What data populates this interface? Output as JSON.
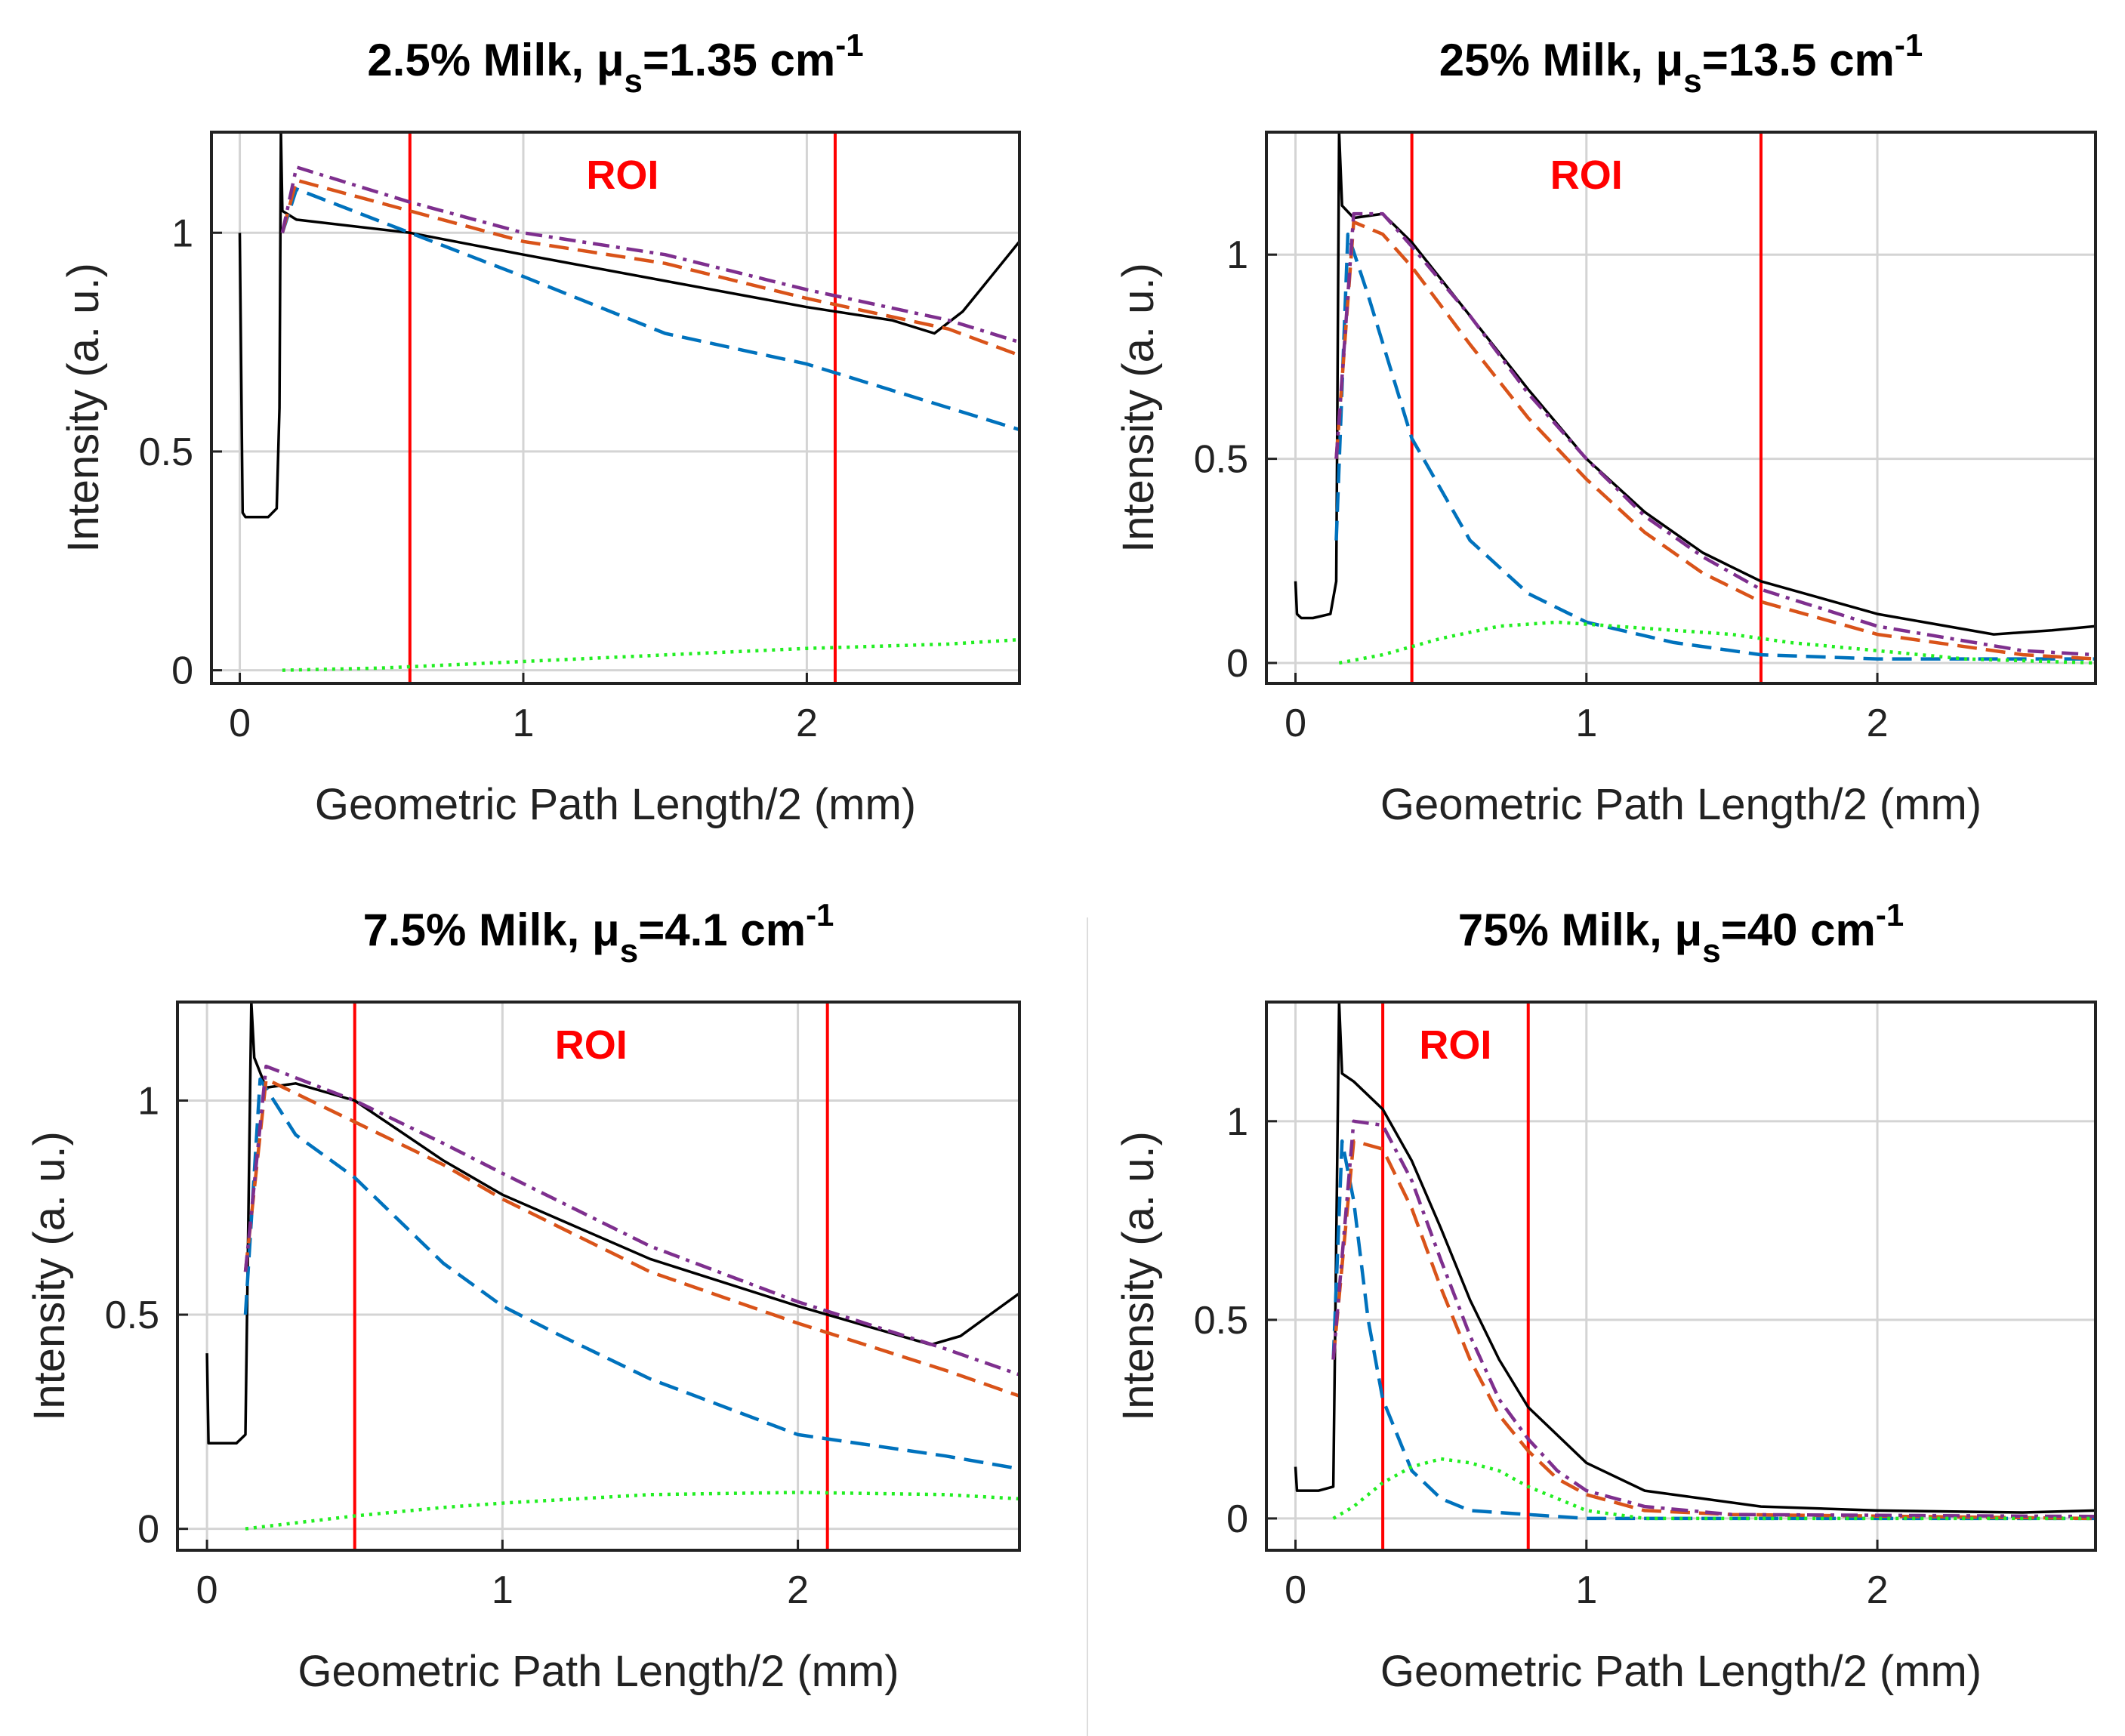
{
  "chart_data": [
    {
      "type": "line",
      "title_main": "2.5% Milk, μ",
      "title_sub": "s",
      "title_value": "=1.35 cm",
      "title_sup": "-1",
      "roi_label": "ROI",
      "roi": [
        0.6,
        2.1
      ],
      "xlabel": "Geometric Path Length/2 (mm)",
      "ylabel": "Intensity (a. u.)",
      "xlim": [
        -0.1,
        2.75
      ],
      "ylim": [
        -0.03,
        1.23
      ],
      "xticks": [
        0,
        1,
        2
      ],
      "xtick_labels": [
        "0",
        "1",
        "2"
      ],
      "yticks": [
        0,
        0.5,
        1
      ],
      "ytick_labels": [
        "0",
        "0.5",
        "1"
      ],
      "series": [
        {
          "name": "reference",
          "color": "#000000",
          "style": "solid",
          "x": [
            0,
            0.01,
            0.02,
            0.05,
            0.1,
            0.13,
            0.14,
            0.145,
            0.15,
            0.2,
            0.6,
            1.0,
            1.5,
            2.0,
            2.3,
            2.45,
            2.55,
            2.65,
            2.75
          ],
          "y": [
            1.0,
            0.36,
            0.35,
            0.35,
            0.35,
            0.37,
            0.6,
            1.23,
            1.05,
            1.03,
            1.0,
            0.95,
            0.89,
            0.83,
            0.8,
            0.77,
            0.82,
            0.9,
            0.98
          ]
        },
        {
          "name": "blue",
          "color": "#0072bd",
          "style": "dashed",
          "x": [
            0.15,
            0.2,
            0.4,
            0.6,
            1.0,
            1.5,
            2.0,
            2.5,
            2.75
          ],
          "y": [
            1.0,
            1.1,
            1.05,
            1.0,
            0.9,
            0.77,
            0.7,
            0.6,
            0.55
          ]
        },
        {
          "name": "orange",
          "color": "#d95319",
          "style": "dashed",
          "x": [
            0.15,
            0.2,
            0.6,
            1.0,
            1.5,
            2.0,
            2.5,
            2.75
          ],
          "y": [
            1.0,
            1.12,
            1.05,
            0.98,
            0.93,
            0.85,
            0.78,
            0.72
          ]
        },
        {
          "name": "purple",
          "color": "#7e2f8e",
          "style": "dashdot",
          "x": [
            0.15,
            0.2,
            0.6,
            1.0,
            1.5,
            2.0,
            2.5,
            2.75
          ],
          "y": [
            1.0,
            1.15,
            1.07,
            1.0,
            0.95,
            0.87,
            0.8,
            0.75
          ]
        },
        {
          "name": "green",
          "color": "#22ee22",
          "style": "dotted",
          "x": [
            0.15,
            0.5,
            1.0,
            1.5,
            2.0,
            2.5,
            2.75
          ],
          "y": [
            0.0,
            0.005,
            0.02,
            0.035,
            0.05,
            0.06,
            0.07
          ]
        }
      ]
    },
    {
      "type": "line",
      "title_main": "25% Milk, μ",
      "title_sub": "s",
      "title_value": "=13.5 cm",
      "title_sup": "-1",
      "roi_label": "ROI",
      "roi": [
        0.4,
        1.6
      ],
      "xlabel": "Geometric Path Length/2 (mm)",
      "ylabel": "Intensity (a. u.)",
      "xlim": [
        -0.1,
        2.75
      ],
      "ylim": [
        -0.05,
        1.3
      ],
      "xticks": [
        0,
        1,
        2
      ],
      "xtick_labels": [
        "0",
        "1",
        "2"
      ],
      "yticks": [
        0,
        0.5,
        1
      ],
      "ytick_labels": [
        "0",
        "0.5",
        "1"
      ],
      "series": [
        {
          "name": "reference",
          "color": "#000000",
          "style": "solid",
          "x": [
            0,
            0.005,
            0.02,
            0.06,
            0.12,
            0.14,
            0.15,
            0.16,
            0.2,
            0.3,
            0.4,
            0.6,
            0.8,
            1.0,
            1.2,
            1.4,
            1.6,
            2.0,
            2.4,
            2.6,
            2.75
          ],
          "y": [
            0.2,
            0.12,
            0.11,
            0.11,
            0.12,
            0.2,
            1.3,
            1.12,
            1.09,
            1.1,
            1.03,
            0.85,
            0.67,
            0.5,
            0.37,
            0.27,
            0.2,
            0.12,
            0.07,
            0.08,
            0.09
          ]
        },
        {
          "name": "blue",
          "color": "#0072bd",
          "style": "dashed",
          "x": [
            0.14,
            0.18,
            0.25,
            0.4,
            0.6,
            0.8,
            1.0,
            1.3,
            1.6,
            2.0,
            2.75
          ],
          "y": [
            0.3,
            1.05,
            0.9,
            0.55,
            0.3,
            0.17,
            0.1,
            0.05,
            0.02,
            0.01,
            0.01
          ]
        },
        {
          "name": "orange",
          "color": "#d95319",
          "style": "dashed",
          "x": [
            0.14,
            0.2,
            0.3,
            0.4,
            0.6,
            0.8,
            1.0,
            1.2,
            1.4,
            1.6,
            2.0,
            2.5,
            2.75
          ],
          "y": [
            0.5,
            1.08,
            1.05,
            0.97,
            0.78,
            0.6,
            0.45,
            0.32,
            0.22,
            0.15,
            0.07,
            0.02,
            0.01
          ]
        },
        {
          "name": "purple",
          "color": "#7e2f8e",
          "style": "dashdot",
          "x": [
            0.14,
            0.2,
            0.3,
            0.4,
            0.6,
            0.8,
            1.0,
            1.2,
            1.4,
            1.6,
            2.0,
            2.5,
            2.75
          ],
          "y": [
            0.5,
            1.1,
            1.1,
            1.02,
            0.85,
            0.66,
            0.5,
            0.36,
            0.26,
            0.18,
            0.09,
            0.03,
            0.02
          ]
        },
        {
          "name": "green",
          "color": "#22ee22",
          "style": "dotted",
          "x": [
            0.15,
            0.3,
            0.5,
            0.7,
            0.9,
            1.1,
            1.3,
            1.5,
            1.7,
            2.0,
            2.3,
            2.75
          ],
          "y": [
            0.0,
            0.02,
            0.06,
            0.09,
            0.1,
            0.09,
            0.08,
            0.07,
            0.05,
            0.03,
            0.01,
            0.0
          ]
        }
      ]
    },
    {
      "type": "line",
      "title_main": "7.5% Milk, μ",
      "title_sub": "s",
      "title_value": "=4.1 cm",
      "title_sup": "-1",
      "roi_label": "ROI",
      "roi": [
        0.5,
        2.1
      ],
      "xlabel": "Geometric Path Length/2 (mm)",
      "ylabel": "Intensity (a. u.)",
      "xlim": [
        -0.1,
        2.75
      ],
      "ylim": [
        -0.05,
        1.23
      ],
      "xticks": [
        0,
        1,
        2
      ],
      "xtick_labels": [
        "0",
        "1",
        "2"
      ],
      "yticks": [
        0,
        0.5,
        1
      ],
      "ytick_labels": [
        "0",
        "0.5",
        "1"
      ],
      "series": [
        {
          "name": "reference",
          "color": "#000000",
          "style": "solid",
          "x": [
            0,
            0.005,
            0.02,
            0.06,
            0.1,
            0.13,
            0.15,
            0.16,
            0.2,
            0.3,
            0.5,
            0.8,
            1.0,
            1.5,
            2.0,
            2.3,
            2.45,
            2.55,
            2.65,
            2.75
          ],
          "y": [
            0.41,
            0.2,
            0.2,
            0.2,
            0.2,
            0.22,
            1.23,
            1.1,
            1.03,
            1.04,
            1.0,
            0.86,
            0.78,
            0.63,
            0.52,
            0.46,
            0.43,
            0.45,
            0.5,
            0.55
          ]
        },
        {
          "name": "blue",
          "color": "#0072bd",
          "style": "dashed",
          "x": [
            0.13,
            0.18,
            0.3,
            0.5,
            0.8,
            1.0,
            1.2,
            1.5,
            2.0,
            2.5,
            2.75
          ],
          "y": [
            0.5,
            1.05,
            0.92,
            0.82,
            0.62,
            0.52,
            0.45,
            0.35,
            0.22,
            0.17,
            0.14
          ]
        },
        {
          "name": "orange",
          "color": "#d95319",
          "style": "dashed",
          "x": [
            0.13,
            0.2,
            0.5,
            0.8,
            1.0,
            1.5,
            2.0,
            2.5,
            2.75
          ],
          "y": [
            0.6,
            1.05,
            0.95,
            0.85,
            0.77,
            0.6,
            0.48,
            0.37,
            0.31
          ]
        },
        {
          "name": "purple",
          "color": "#7e2f8e",
          "style": "dashdot",
          "x": [
            0.13,
            0.2,
            0.5,
            0.8,
            1.0,
            1.5,
            2.0,
            2.5,
            2.75
          ],
          "y": [
            0.6,
            1.08,
            1.0,
            0.9,
            0.83,
            0.66,
            0.53,
            0.42,
            0.36
          ]
        },
        {
          "name": "green",
          "color": "#22ee22",
          "style": "dotted",
          "x": [
            0.13,
            0.5,
            0.8,
            1.0,
            1.5,
            2.0,
            2.5,
            2.75
          ],
          "y": [
            0.0,
            0.03,
            0.05,
            0.06,
            0.08,
            0.085,
            0.08,
            0.07
          ]
        }
      ]
    },
    {
      "type": "line",
      "title_main": "75% Milk, μ",
      "title_sub": "s",
      "title_value": "=40 cm",
      "title_sup": "-1",
      "roi_label": "ROI",
      "roi": [
        0.3,
        0.8
      ],
      "xlabel": "Geometric Path Length/2 (mm)",
      "ylabel": "Intensity (a. u.)",
      "xlim": [
        -0.1,
        2.75
      ],
      "ylim": [
        -0.08,
        1.3
      ],
      "xticks": [
        0,
        1,
        2
      ],
      "xtick_labels": [
        "0",
        "1",
        "2"
      ],
      "yticks": [
        0,
        0.5,
        1
      ],
      "ytick_labels": [
        "0",
        "0.5",
        "1"
      ],
      "series": [
        {
          "name": "reference",
          "color": "#000000",
          "style": "solid",
          "x": [
            0,
            0.005,
            0.02,
            0.08,
            0.13,
            0.15,
            0.16,
            0.2,
            0.3,
            0.4,
            0.5,
            0.6,
            0.7,
            0.8,
            1.0,
            1.2,
            1.6,
            2.0,
            2.5,
            2.75
          ],
          "y": [
            0.13,
            0.07,
            0.07,
            0.07,
            0.08,
            1.3,
            1.12,
            1.1,
            1.03,
            0.9,
            0.73,
            0.55,
            0.4,
            0.28,
            0.14,
            0.07,
            0.03,
            0.02,
            0.015,
            0.02
          ]
        },
        {
          "name": "blue",
          "color": "#0072bd",
          "style": "dashed",
          "x": [
            0.13,
            0.16,
            0.2,
            0.25,
            0.3,
            0.4,
            0.5,
            0.6,
            0.8,
            1.0,
            2.75
          ],
          "y": [
            0.4,
            0.95,
            0.8,
            0.5,
            0.3,
            0.12,
            0.05,
            0.02,
            0.01,
            0.0,
            0.0
          ]
        },
        {
          "name": "orange",
          "color": "#d95319",
          "style": "dashed",
          "x": [
            0.13,
            0.2,
            0.3,
            0.4,
            0.5,
            0.6,
            0.7,
            0.8,
            0.9,
            1.0,
            1.2,
            1.5,
            2.75
          ],
          "y": [
            0.4,
            0.95,
            0.93,
            0.78,
            0.58,
            0.4,
            0.26,
            0.17,
            0.1,
            0.06,
            0.02,
            0.01,
            0.0
          ]
        },
        {
          "name": "purple",
          "color": "#7e2f8e",
          "style": "dashdot",
          "x": [
            0.13,
            0.2,
            0.3,
            0.4,
            0.5,
            0.6,
            0.7,
            0.8,
            0.9,
            1.0,
            1.2,
            1.5,
            2.75
          ],
          "y": [
            0.4,
            1.0,
            0.99,
            0.85,
            0.65,
            0.46,
            0.3,
            0.2,
            0.12,
            0.07,
            0.03,
            0.01,
            0.005
          ]
        },
        {
          "name": "green",
          "color": "#22ee22",
          "style": "dotted",
          "x": [
            0.13,
            0.2,
            0.3,
            0.4,
            0.5,
            0.6,
            0.7,
            0.8,
            0.9,
            1.0,
            1.2,
            2.75
          ],
          "y": [
            0.0,
            0.03,
            0.09,
            0.13,
            0.15,
            0.14,
            0.12,
            0.08,
            0.05,
            0.02,
            0.0,
            0.0
          ]
        }
      ]
    }
  ]
}
